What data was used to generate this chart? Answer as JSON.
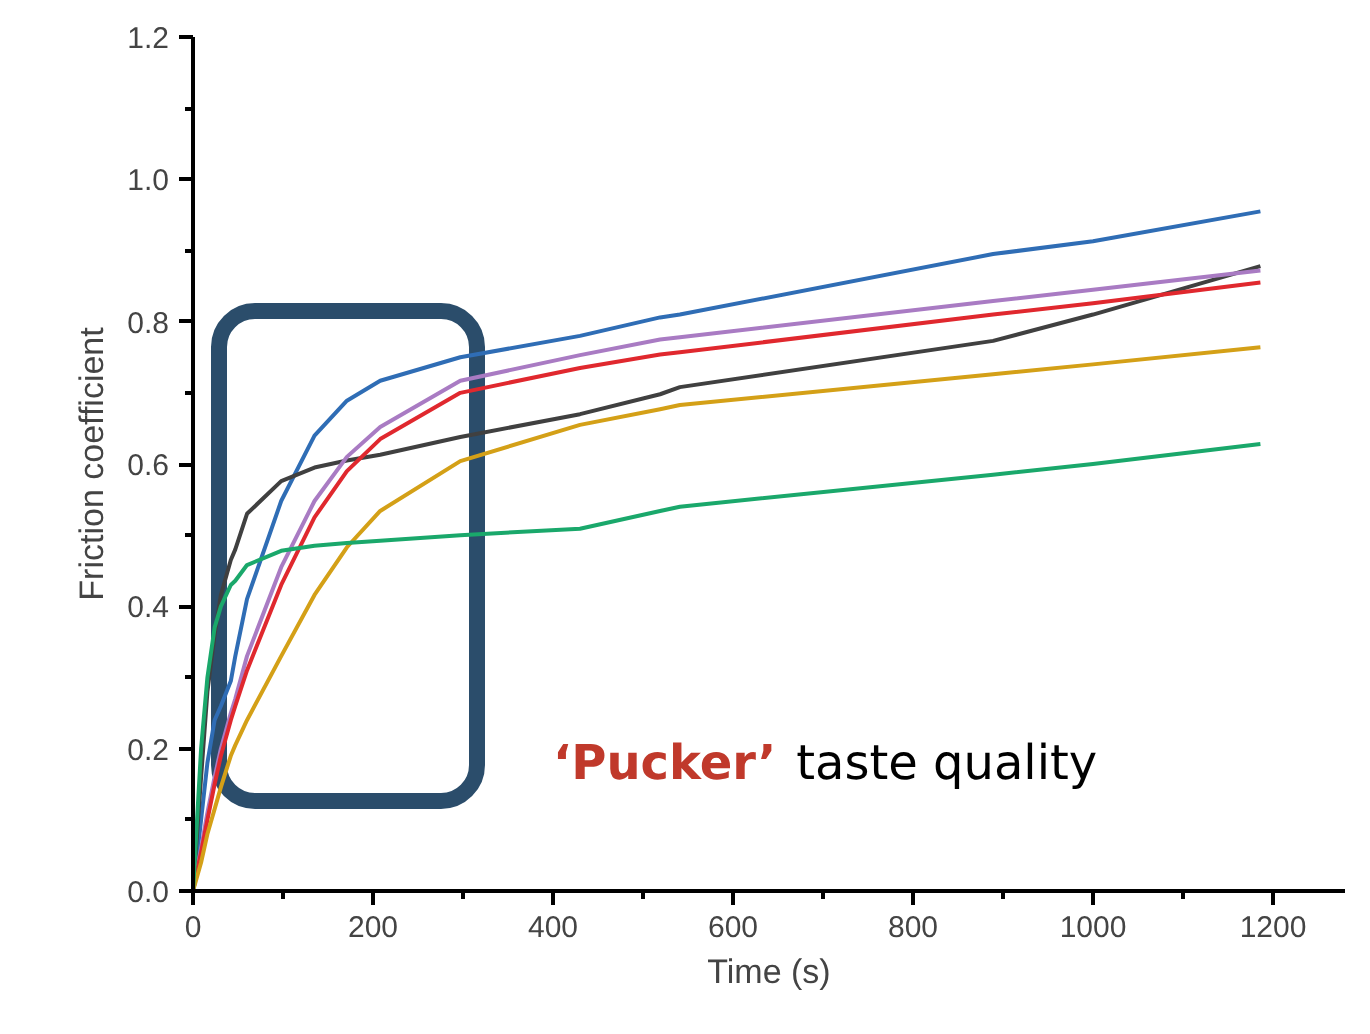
{
  "chart_data": {
    "type": "line",
    "xlabel": "Time (s)",
    "ylabel": "Friction coefficient",
    "xlim": [
      0,
      1280
    ],
    "xticks": [
      0,
      200,
      400,
      600,
      800,
      1000,
      1200
    ],
    "ylim": [
      0,
      1.2
    ],
    "yticks": [
      {
        "value": 0,
        "label": "0.0"
      },
      {
        "value": 0.2,
        "label": "0.2"
      },
      {
        "value": 0.4,
        "label": "0.4"
      },
      {
        "value": 0.6,
        "label": "0.6"
      },
      {
        "value": 0.8,
        "label": "0.8"
      },
      {
        "value": 1.0,
        "label": "1.0"
      },
      {
        "value": 1.2,
        "label": "1.2"
      }
    ],
    "grid": false,
    "marker": "none",
    "line_style": "solid",
    "x": [
      0,
      9,
      16,
      24,
      31,
      42,
      47,
      60,
      98,
      135,
      171,
      208,
      297,
      430,
      519,
      541,
      889,
      1000,
      1186
    ],
    "series": [
      {
        "color": "#2f6db5",
        "values": [
          0,
          0.1,
          0.18,
          0.24,
          0.26,
          0.295,
          0.33,
          0.41,
          0.548,
          0.64,
          0.689,
          0.717,
          0.75,
          0.78,
          0.806,
          0.81,
          0.895,
          0.913,
          0.955
        ]
      },
      {
        "color": "#404040",
        "values": [
          0,
          0.16,
          0.28,
          0.36,
          0.416,
          0.465,
          0.48,
          0.53,
          0.576,
          0.595,
          0.605,
          0.613,
          0.638,
          0.67,
          0.698,
          0.708,
          0.773,
          0.81,
          0.878
        ]
      },
      {
        "color": "#a97bc3",
        "values": [
          0,
          0.06,
          0.11,
          0.16,
          0.2,
          0.25,
          0.27,
          0.33,
          0.455,
          0.548,
          0.61,
          0.652,
          0.717,
          0.753,
          0.775,
          0.778,
          0.829,
          0.845,
          0.872
        ]
      },
      {
        "color": "#e0282e",
        "values": [
          0,
          0.055,
          0.1,
          0.15,
          0.19,
          0.24,
          0.26,
          0.31,
          0.43,
          0.525,
          0.59,
          0.635,
          0.7,
          0.735,
          0.754,
          0.757,
          0.81,
          0.826,
          0.855
        ]
      },
      {
        "color": "#d4a017",
        "values": [
          0,
          0.04,
          0.08,
          0.115,
          0.146,
          0.19,
          0.205,
          0.24,
          0.33,
          0.416,
          0.483,
          0.534,
          0.604,
          0.655,
          0.677,
          0.683,
          0.726,
          0.74,
          0.764
        ]
      },
      {
        "color": "#1aa86b",
        "values": [
          0,
          0.2,
          0.3,
          0.37,
          0.4,
          0.43,
          0.436,
          0.458,
          0.478,
          0.485,
          0.489,
          0.492,
          0.5,
          0.509,
          0.534,
          0.54,
          0.585,
          0.6,
          0.628
        ]
      }
    ],
    "annotations": [
      "‘Pucker’",
      "taste quality"
    ]
  }
}
